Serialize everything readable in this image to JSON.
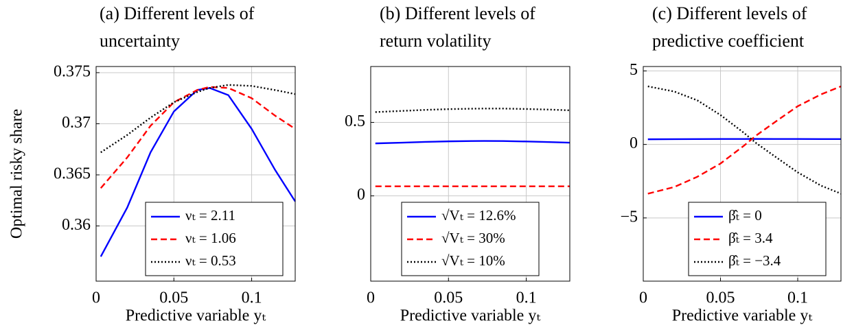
{
  "chart_data": [
    {
      "type": "line",
      "title": "(a) Different levels of uncertainty",
      "xlabel": "Predictive variable yₜ",
      "ylabel": "Optimal risky share",
      "x": [
        0.003,
        0.02,
        0.035,
        0.05,
        0.065,
        0.073,
        0.085,
        0.1,
        0.115,
        0.128
      ],
      "series": [
        {
          "name": "νₜ = 2.11",
          "color": "#0000ff",
          "style": "solid",
          "values": [
            0.357,
            0.3618,
            0.3672,
            0.3712,
            0.3733,
            0.3735,
            0.3728,
            0.3695,
            0.3655,
            0.3624
          ]
        },
        {
          "name": "νₜ = 1.06",
          "color": "#ff0000",
          "style": "dashed",
          "values": [
            0.3637,
            0.3667,
            0.3698,
            0.3721,
            0.3733,
            0.3736,
            0.3735,
            0.3725,
            0.3708,
            0.3695
          ]
        },
        {
          "name": "νₜ = 0.53",
          "color": "#000000",
          "style": "dotted",
          "values": [
            0.3672,
            0.3689,
            0.3706,
            0.3721,
            0.3731,
            0.3735,
            0.3738,
            0.3737,
            0.3733,
            0.3729
          ]
        }
      ],
      "xlim": [
        0,
        0.128
      ],
      "xticks": [
        0,
        0.05,
        0.1
      ],
      "ylim": [
        0.3546,
        0.3756
      ],
      "yticks": [
        0.36,
        0.365,
        0.37,
        0.375
      ],
      "grid": true,
      "legend": "lower right"
    },
    {
      "type": "line",
      "title": "(b) Different levels of return volatility",
      "xlabel": "Predictive variable yₜ",
      "x": [
        0.003,
        0.02,
        0.035,
        0.05,
        0.065,
        0.073,
        0.085,
        0.1,
        0.115,
        0.128
      ],
      "series": [
        {
          "name": "√Vₜ = 12.6%",
          "color": "#0000ff",
          "style": "solid",
          "values": [
            0.357,
            0.362,
            0.367,
            0.371,
            0.373,
            0.3735,
            0.373,
            0.37,
            0.366,
            0.362
          ]
        },
        {
          "name": "√Vₜ = 30%",
          "color": "#ff0000",
          "style": "dashed",
          "values": [
            0.065,
            0.065,
            0.065,
            0.065,
            0.065,
            0.065,
            0.065,
            0.065,
            0.065,
            0.065
          ]
        },
        {
          "name": "√Vₜ = 10%",
          "color": "#000000",
          "style": "dotted",
          "values": [
            0.57,
            0.578,
            0.585,
            0.59,
            0.593,
            0.594,
            0.594,
            0.591,
            0.587,
            0.582
          ]
        }
      ],
      "xlim": [
        0,
        0.128
      ],
      "xticks": [
        0,
        0.05,
        0.1
      ],
      "ylim": [
        -0.58,
        0.88
      ],
      "yticks": [
        0,
        0.5
      ],
      "grid": true,
      "legend": "lower center"
    },
    {
      "type": "line",
      "title": "(c) Different levels of predictive coefficient",
      "xlabel": "Predictive variable yₜ",
      "x": [
        0.003,
        0.02,
        0.035,
        0.05,
        0.065,
        0.073,
        0.085,
        0.1,
        0.115,
        0.128
      ],
      "series": [
        {
          "name": "β̂ₜ = 0",
          "color": "#0000ff",
          "style": "solid",
          "values": [
            0.35,
            0.36,
            0.365,
            0.37,
            0.372,
            0.373,
            0.372,
            0.37,
            0.366,
            0.363
          ]
        },
        {
          "name": "β̂ₜ = 3.4",
          "color": "#ff0000",
          "style": "dashed",
          "values": [
            -3.35,
            -2.9,
            -2.2,
            -1.3,
            -0.1,
            0.6,
            1.5,
            2.6,
            3.4,
            3.95
          ]
        },
        {
          "name": "β̂ₜ = −3.4",
          "color": "#000000",
          "style": "dotted",
          "values": [
            3.95,
            3.6,
            3.0,
            2.0,
            0.8,
            0.1,
            -0.8,
            -1.9,
            -2.8,
            -3.35
          ]
        }
      ],
      "xlim": [
        0,
        0.128
      ],
      "xticks": [
        0,
        0.05,
        0.1
      ],
      "ylim": [
        -9.3,
        5.3
      ],
      "yticks": [
        {
          "value": -5,
          "label": "−5"
        },
        0,
        5
      ],
      "grid": true,
      "legend": "lower left"
    }
  ]
}
